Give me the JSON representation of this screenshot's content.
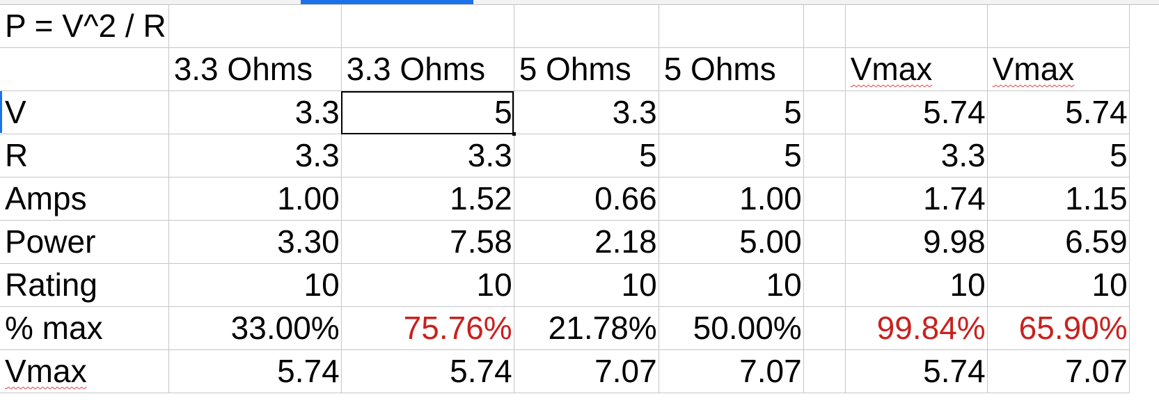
{
  "sheet": {
    "title_cell": "P = V^2 / R",
    "column_headers": [
      "3.3 Ohms",
      "3.3 Ohms",
      "5 Ohms",
      "5 Ohms",
      "",
      "Vmax",
      "Vmax"
    ],
    "rows": [
      {
        "label": "V",
        "values": [
          "3.3",
          "5",
          "3.3",
          "5",
          "",
          "5.74",
          "5.74"
        ]
      },
      {
        "label": "R",
        "values": [
          "3.3",
          "3.3",
          "5",
          "5",
          "",
          "3.3",
          "5"
        ]
      },
      {
        "label": "Amps",
        "values": [
          "1.00",
          "1.52",
          "0.66",
          "1.00",
          "",
          "1.74",
          "1.15"
        ]
      },
      {
        "label": "Power",
        "values": [
          "3.30",
          "7.58",
          "2.18",
          "5.00",
          "",
          "9.98",
          "6.59"
        ]
      },
      {
        "label": "Rating",
        "values": [
          "10",
          "10",
          "10",
          "10",
          "",
          "10",
          "10"
        ]
      },
      {
        "label": "% max",
        "values": [
          "33.00%",
          "75.76%",
          "21.78%",
          "50.00%",
          "",
          "99.84%",
          "65.90%"
        ]
      },
      {
        "label": "Vmax",
        "values": [
          "5.74",
          "5.74",
          "7.07",
          "7.07",
          "",
          "5.74",
          "7.07"
        ]
      }
    ],
    "red_color": "#c9211e",
    "selection_color": "#1a73e8",
    "selected_cell": "C3"
  }
}
